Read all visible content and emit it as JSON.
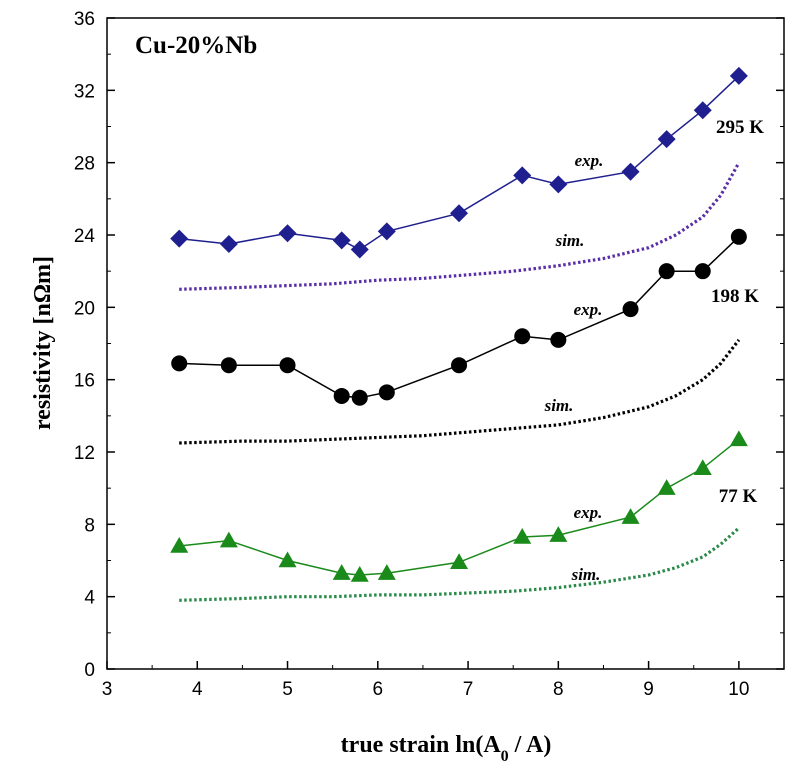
{
  "chart_data": {
    "type": "line",
    "title": "Cu-20%Nb",
    "xlabel": "true strain  ln(A",
    "xlabel_sub": "0",
    "xlabel_end": " / A)",
    "ylabel": "resistivity [nΩm]",
    "xlim": [
      3,
      10.5
    ],
    "ylim": [
      0,
      36
    ],
    "xticks": [
      "3",
      "4",
      "5",
      "6",
      "7",
      "8",
      "9",
      "10"
    ],
    "yticks": [
      "0",
      "4",
      "8",
      "12",
      "16",
      "20",
      "24",
      "28",
      "32",
      "36"
    ],
    "grid": false,
    "groups": [
      {
        "temperature": "295 K",
        "color": "#1f1f8f",
        "exp_label": "exp.",
        "sim_label": "sim.",
        "exp": {
          "marker": "diamond",
          "x": [
            3.8,
            4.35,
            5.0,
            5.6,
            5.8,
            6.1,
            6.9,
            7.6,
            8.0,
            8.8,
            9.2,
            9.6,
            10.0
          ],
          "y": [
            23.8,
            23.5,
            24.1,
            23.7,
            23.2,
            24.2,
            25.2,
            27.3,
            26.8,
            27.5,
            29.3,
            30.9,
            32.8
          ]
        },
        "sim": {
          "color": "#5a2ea6",
          "x": [
            3.8,
            4.5,
            5.0,
            5.5,
            6.0,
            6.5,
            7.0,
            7.5,
            8.0,
            8.5,
            9.0,
            9.3,
            9.6,
            9.8,
            10.0
          ],
          "y": [
            21.0,
            21.1,
            21.2,
            21.3,
            21.5,
            21.6,
            21.8,
            22.0,
            22.3,
            22.7,
            23.3,
            24.0,
            25.0,
            26.2,
            28.0
          ]
        }
      },
      {
        "temperature": "198 K",
        "color": "#000000",
        "exp_label": "exp.",
        "sim_label": "sim.",
        "exp": {
          "marker": "circle",
          "x": [
            3.8,
            4.35,
            5.0,
            5.6,
            5.8,
            6.1,
            6.9,
            7.6,
            8.0,
            8.8,
            9.2,
            9.6,
            10.0
          ],
          "y": [
            16.9,
            16.8,
            16.8,
            15.1,
            15.0,
            15.3,
            16.8,
            18.4,
            18.2,
            19.9,
            22.0,
            22.0,
            23.9
          ]
        },
        "sim": {
          "color": "#000000",
          "x": [
            3.8,
            4.5,
            5.0,
            5.5,
            6.0,
            6.5,
            7.0,
            7.5,
            8.0,
            8.5,
            9.0,
            9.3,
            9.6,
            9.8,
            10.0
          ],
          "y": [
            12.5,
            12.6,
            12.6,
            12.7,
            12.8,
            12.9,
            13.1,
            13.3,
            13.5,
            13.9,
            14.5,
            15.1,
            16.0,
            16.9,
            18.2
          ]
        }
      },
      {
        "temperature": "77 K",
        "color": "#1a8a1a",
        "exp_label": "exp.",
        "sim_label": "sim.",
        "exp": {
          "marker": "triangle",
          "x": [
            3.8,
            4.35,
            5.0,
            5.6,
            5.8,
            6.1,
            6.9,
            7.6,
            8.0,
            8.8,
            9.2,
            9.6,
            10.0
          ],
          "y": [
            6.8,
            7.1,
            6.0,
            5.3,
            5.2,
            5.3,
            5.9,
            7.3,
            7.4,
            8.4,
            10.0,
            11.1,
            12.7
          ]
        },
        "sim": {
          "color": "#2a8a4a",
          "x": [
            3.8,
            4.5,
            5.0,
            5.5,
            6.0,
            6.5,
            7.0,
            7.5,
            8.0,
            8.5,
            9.0,
            9.3,
            9.6,
            9.8,
            10.0
          ],
          "y": [
            3.8,
            3.9,
            4.0,
            4.0,
            4.1,
            4.1,
            4.2,
            4.3,
            4.5,
            4.8,
            5.2,
            5.6,
            6.2,
            6.9,
            7.8
          ]
        }
      }
    ]
  }
}
